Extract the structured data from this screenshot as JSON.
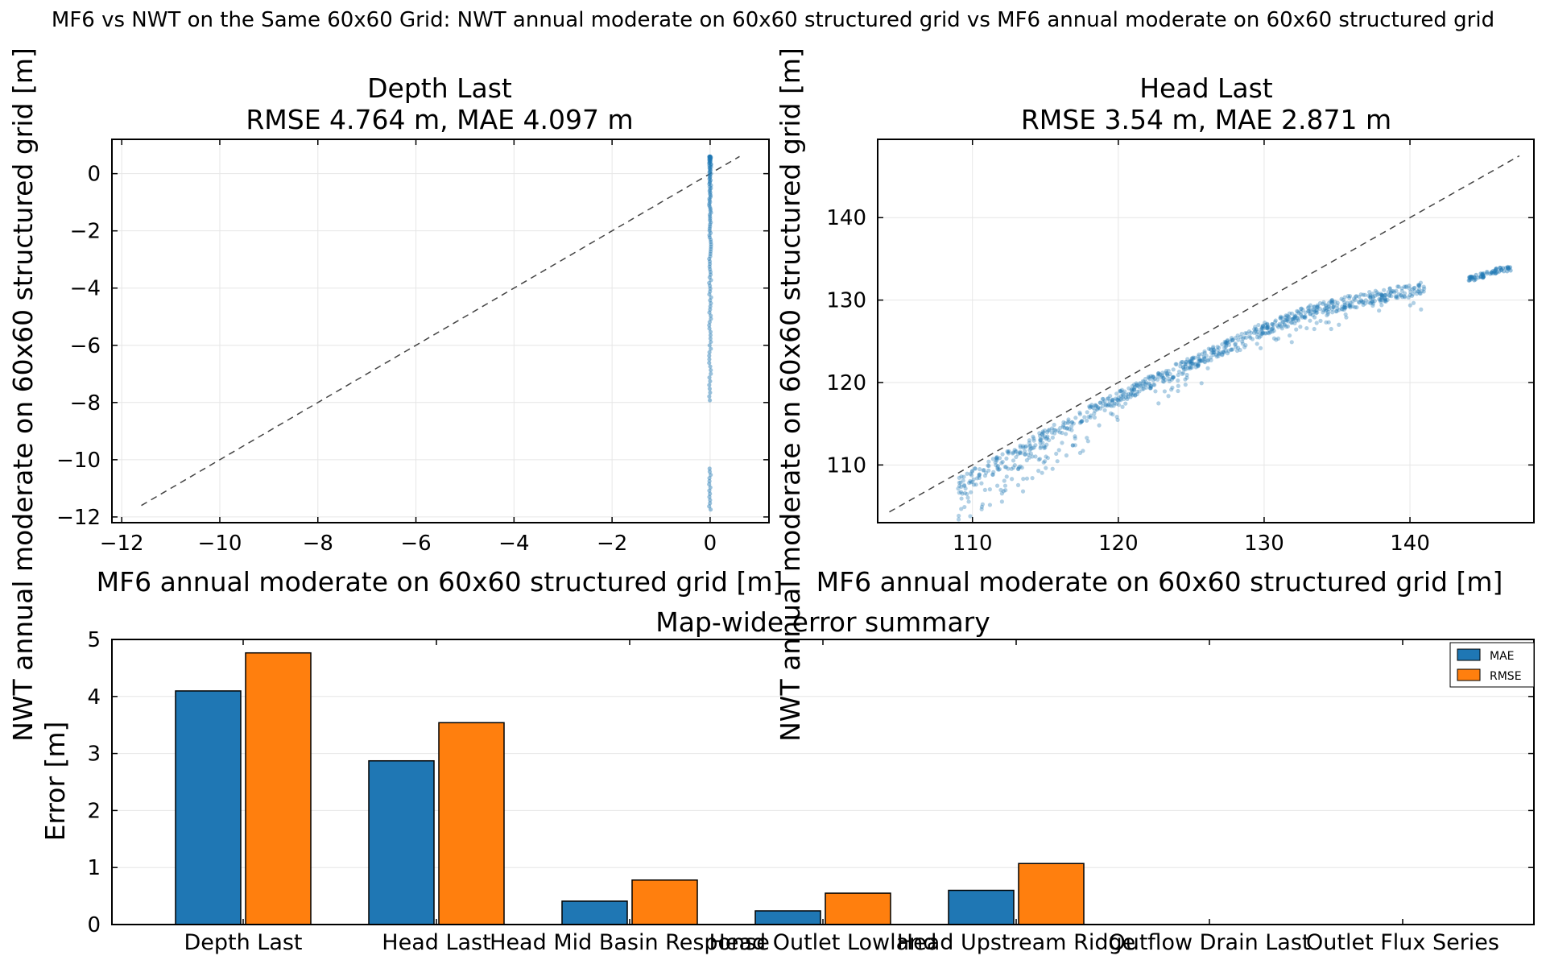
{
  "suptitle": "MF6 vs NWT on the Same 60x60 Grid: NWT annual moderate on 60x60 structured grid vs MF6 annual moderate on 60x60 structured grid",
  "colors": {
    "mae": "#1f77b4",
    "rmse": "#ff7f0e",
    "scatter": "#1f77b4",
    "identity": "#444444"
  },
  "chart_data": [
    {
      "type": "scatter",
      "title": "Depth Last",
      "subtitle": "RMSE 4.764 m, MAE 4.097 m",
      "xlabel": "MF6 annual moderate on 60x60 structured grid [m]",
      "ylabel": "NWT annual moderate on 60x60 structured grid [m]",
      "xlim": [
        -12.2,
        1.2
      ],
      "ylim": [
        -12.2,
        1.2
      ],
      "xticks": [
        -12,
        -10,
        -8,
        -6,
        -4,
        -2,
        0
      ],
      "yticks": [
        -12,
        -10,
        -8,
        -6,
        -4,
        -2,
        0
      ],
      "grid": true,
      "identity_line": true,
      "series": [
        {
          "x_constant": 0,
          "y_range": [
            -11.8,
            0.6
          ],
          "description_points": "vertical cluster at x=0"
        }
      ]
    },
    {
      "type": "scatter",
      "title": "Head Last",
      "subtitle": "RMSE 3.54 m, MAE 2.871 m",
      "xlabel": "MF6 annual moderate on 60x60 structured grid [m]",
      "ylabel": "NWT annual moderate on 60x60 structured grid [m]",
      "xlim": [
        103.5,
        148.5
      ],
      "ylim": [
        103.0,
        149.5
      ],
      "xticks": [
        110,
        120,
        130,
        140
      ],
      "yticks": [
        110,
        120,
        130,
        140
      ],
      "grid": true,
      "identity_line": true,
      "series": [
        {
          "trend": [
            [
              109,
              107.8
            ],
            [
              112,
              110.5
            ],
            [
              115,
              113.5
            ],
            [
              118,
              116.5
            ],
            [
              121,
              119.0
            ],
            [
              124,
              121.5
            ],
            [
              127,
              124.0
            ],
            [
              130,
              126.5
            ],
            [
              133,
              128.5
            ],
            [
              136,
              129.8
            ],
            [
              139,
              130.8
            ],
            [
              141,
              131.5
            ]
          ]
        },
        {
          "trend": [
            [
              144,
              132.5
            ],
            [
              145,
              133.0
            ],
            [
              146,
              133.6
            ],
            [
              147,
              133.8
            ]
          ]
        }
      ]
    },
    {
      "type": "bar",
      "title": "Map-wide error summary",
      "ylabel": "Error [m]",
      "ylim": [
        0,
        5
      ],
      "yticks": [
        0,
        1,
        2,
        3,
        4,
        5
      ],
      "categories": [
        "Depth Last",
        "Head Last",
        "Head Mid Basin Response",
        "Head Outlet Lowland",
        "Head Upstream Ridge",
        "Outflow Drain Last",
        "Outlet Flux Series"
      ],
      "series": [
        {
          "name": "MAE",
          "values": [
            4.097,
            2.871,
            0.41,
            0.24,
            0.6,
            0,
            0
          ]
        },
        {
          "name": "RMSE",
          "values": [
            4.764,
            3.54,
            0.78,
            0.55,
            1.07,
            0,
            0
          ]
        }
      ],
      "legend": "top-right",
      "grid": true
    }
  ]
}
